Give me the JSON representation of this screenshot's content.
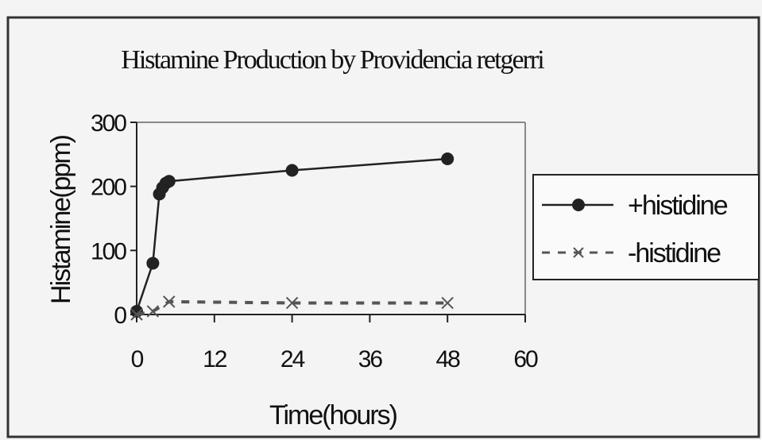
{
  "chart_data": {
    "type": "line",
    "title": "Histamine Production by Providencia retgerri",
    "xlabel": "Time(hours)",
    "ylabel": "Histamine(ppm)",
    "xlim": [
      0,
      60
    ],
    "ylim": [
      0,
      300
    ],
    "xticks": [
      "0",
      "12",
      "24",
      "36",
      "48",
      "60"
    ],
    "yticks": [
      "0",
      "100",
      "200",
      "300"
    ],
    "grid": false,
    "legend_position": "right",
    "series": [
      {
        "name": "+histidine",
        "marker": "circle",
        "line_style": "solid",
        "color": "#222222",
        "x": [
          0,
          2.5,
          3.5,
          4,
          4.5,
          5,
          24,
          48
        ],
        "y": [
          5,
          80,
          188,
          198,
          205,
          208,
          225,
          243
        ]
      },
      {
        "name": "-histidine",
        "marker": "x",
        "line_style": "dashed",
        "color": "#555555",
        "x": [
          0,
          2.5,
          5,
          24,
          48
        ],
        "y": [
          0,
          5,
          20,
          18,
          18
        ]
      }
    ]
  }
}
